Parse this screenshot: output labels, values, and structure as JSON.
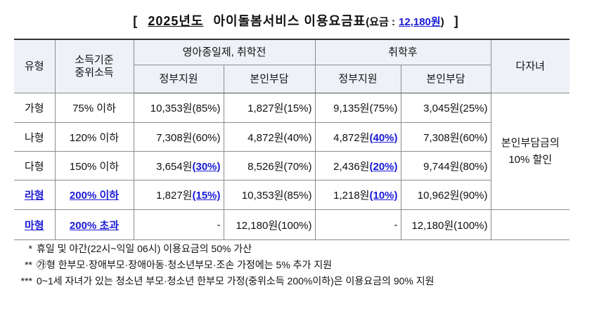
{
  "title": {
    "open_bracket": "[",
    "year": "2025년도",
    "service": "아이돌봄서비스 이용요금표",
    "fee_label": "(요금 :",
    "fee_value": "12,180원",
    "fee_close": ")",
    "close_bracket": "]"
  },
  "table": {
    "header": {
      "type": "유형",
      "income_line1": "소득기준",
      "income_line2": "중위소득",
      "group_preschool": "영아종일제, 취학전",
      "group_school": "취학후",
      "multi_child": "다자녀",
      "gov_support": "정부지원",
      "self_pay": "본인부담"
    },
    "rows": [
      {
        "type": "가형",
        "income": "75% 이하",
        "pre_gov_amount": "10,353원",
        "pre_gov_pct": "(85%)",
        "pre_self_amount": "1,827원",
        "pre_self_pct": "(15%)",
        "post_gov_amount": "9,135원",
        "post_gov_pct": "(75%)",
        "post_self_amount": "3,045원",
        "post_self_pct": "(25%)"
      },
      {
        "type": "나형",
        "income": "120% 이하",
        "pre_gov_amount": "7,308원",
        "pre_gov_pct": "(60%)",
        "pre_self_amount": "4,872원",
        "pre_self_pct": "(40%)",
        "post_gov_amount": "4,872원",
        "post_gov_pct": "(40%)",
        "post_self_amount": "7,308원",
        "post_self_pct": "(60%)"
      },
      {
        "type": "다형",
        "income": "150% 이하",
        "pre_gov_amount": "3,654원",
        "pre_gov_pct": "(30%)",
        "pre_self_amount": "8,526원",
        "pre_self_pct": "(70%)",
        "post_gov_amount": "2,436원",
        "post_gov_pct": "(20%)",
        "post_self_amount": "9,744원",
        "post_self_pct": "(80%)"
      },
      {
        "type": "라형",
        "income": "200% 이하",
        "pre_gov_amount": "1,827원",
        "pre_gov_pct": "(15%)",
        "pre_self_amount": "10,353원",
        "pre_self_pct": "(85%)",
        "post_gov_amount": "1,218원",
        "post_gov_pct": "(10%)",
        "post_self_amount": "10,962원",
        "post_self_pct": "(90%)"
      },
      {
        "type": "마형",
        "income": "200% 초과",
        "pre_gov_amount": "-",
        "pre_self_amount": "12,180원",
        "pre_self_pct": "(100%)",
        "post_gov_amount": "-",
        "post_self_amount": "12,180원",
        "post_self_pct": "(100%)"
      }
    ],
    "multi_child_discount": [
      "본인부담금의",
      "10% 할인"
    ]
  },
  "footnotes": [
    {
      "mark": "*",
      "text": "휴일 및 야간(22시~익일 06시) 이용요금의 50% 가산"
    },
    {
      "mark": "**",
      "text": "㉮형 한부모·장애부모·장애아동·청소년부모·조손 가정에는 5% 추가 지원"
    },
    {
      "mark": "***",
      "text": "0~1세 자녀가 있는 청소년 부모·청소년 한부모 가정(중위소득 200%이하)은 이용요금의 90% 지원"
    }
  ],
  "colors": {
    "highlight": "#1a1ad6",
    "header_bg": "#eef1f7",
    "text": "#111111",
    "border": "#8c8c8c"
  }
}
